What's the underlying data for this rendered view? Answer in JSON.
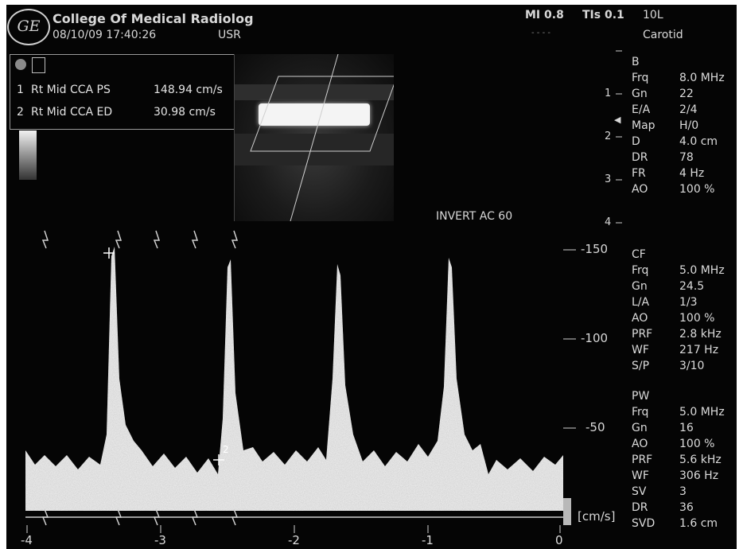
{
  "header": {
    "institution": "College Of Medical Radiolog",
    "datetime": "08/10/09 17:40:26",
    "user": "USR",
    "mi": "MI 0.8",
    "tis": "TIs 0.1",
    "probe": "10L",
    "preset": "Carotid",
    "status_dots": "- - - -",
    "logo_text": "GE"
  },
  "measurements": [
    {
      "index": "1",
      "label": "Rt Mid CCA PS",
      "value": "148.94 cm/s"
    },
    {
      "index": "2",
      "label": "Rt Mid CCA ED",
      "value": "30.98 cm/s"
    }
  ],
  "annotation": "INVERT AC 60",
  "depth_scale": [
    "1",
    "2",
    "3",
    "4"
  ],
  "velocity_scale": {
    "labels": [
      "-150",
      "-100",
      "-50"
    ],
    "unit": "[cm/s]"
  },
  "time_axis": [
    "-4",
    "-3",
    "-2",
    "-1",
    "0"
  ],
  "cursor_labels": {
    "ps": "1",
    "ed": "2"
  },
  "params": {
    "b": {
      "title": "B",
      "rows": [
        {
          "k": "Frq",
          "v": "8.0 MHz"
        },
        {
          "k": "Gn",
          "v": "22"
        },
        {
          "k": "E/A",
          "v": "2/4"
        },
        {
          "k": "Map",
          "v": "H/0"
        },
        {
          "k": "D",
          "v": "4.0 cm"
        },
        {
          "k": "DR",
          "v": "78"
        },
        {
          "k": "FR",
          "v": "4 Hz"
        },
        {
          "k": "AO",
          "v": "100 %"
        }
      ]
    },
    "cf": {
      "title": "CF",
      "rows": [
        {
          "k": "Frq",
          "v": "5.0 MHz"
        },
        {
          "k": "Gn",
          "v": "24.5"
        },
        {
          "k": "L/A",
          "v": "1/3"
        },
        {
          "k": "AO",
          "v": "100 %"
        },
        {
          "k": "PRF",
          "v": "2.8 kHz"
        },
        {
          "k": "WF",
          "v": "217 Hz"
        },
        {
          "k": "S/P",
          "v": "3/10"
        }
      ]
    },
    "pw": {
      "title": "PW",
      "rows": [
        {
          "k": "Frq",
          "v": "5.0 MHz"
        },
        {
          "k": "Gn",
          "v": "16"
        },
        {
          "k": "AO",
          "v": "100 %"
        },
        {
          "k": "PRF",
          "v": "5.6 kHz"
        },
        {
          "k": "WF",
          "v": "306 Hz"
        },
        {
          "k": "SV",
          "v": "3"
        },
        {
          "k": "DR",
          "v": "36"
        },
        {
          "k": "SVD",
          "v": "1.6 cm"
        }
      ]
    }
  },
  "colors": {
    "background": "#050505",
    "text": "#dcdcdc",
    "spectrum": "#f0f0f0"
  }
}
